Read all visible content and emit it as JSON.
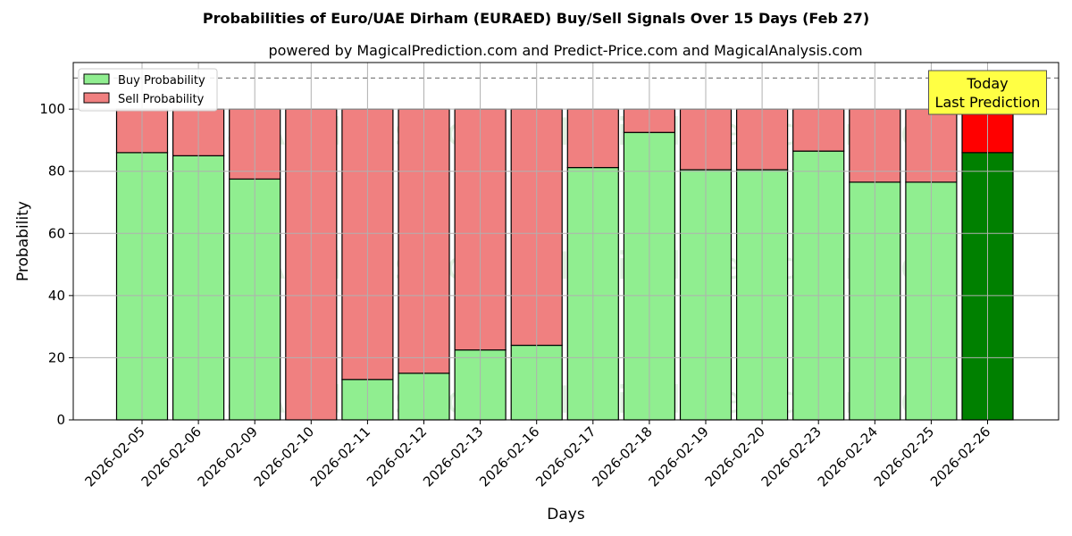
{
  "chart_data": {
    "type": "bar",
    "stacked": true,
    "title": "Probabilities of Euro/UAE Dirham (EURAED) Buy/Sell Signals Over 15 Days (Feb 27)",
    "subtitle": "powered by MagicalPrediction.com and Predict-Price.com and MagicalAnalysis.com",
    "xlabel": "Days",
    "ylabel": "Probability",
    "ylim": [
      0,
      115
    ],
    "yticks": [
      0,
      20,
      40,
      60,
      80,
      100
    ],
    "reference_line": 110,
    "grid": true,
    "legend_position": "top-left",
    "categories": [
      "2026-02-05",
      "2026-02-06",
      "2026-02-09",
      "2026-02-10",
      "2026-02-11",
      "2026-02-12",
      "2026-02-13",
      "2026-02-16",
      "2026-02-17",
      "2026-02-18",
      "2026-02-19",
      "2026-02-20",
      "2026-02-23",
      "2026-02-24",
      "2026-02-25",
      "2026-02-26"
    ],
    "series": [
      {
        "name": "Buy Probability",
        "color": "#90ee90",
        "highlight_color": "#008000",
        "values": [
          86,
          85,
          77.5,
          0,
          13,
          15,
          22.5,
          24,
          81.2,
          92.5,
          80.5,
          80.5,
          86.5,
          76.5,
          76.5,
          86
        ]
      },
      {
        "name": "Sell Probability",
        "color": "#f08080",
        "highlight_color": "#ff0000",
        "values": [
          14,
          15,
          22.5,
          100,
          87,
          85,
          77.5,
          76,
          18.8,
          7.5,
          19.5,
          19.5,
          13.5,
          23.5,
          23.5,
          14
        ]
      }
    ],
    "annotation": {
      "text_lines": [
        "Today",
        "Last Prediction"
      ],
      "category": "2026-02-26",
      "background": "#ffff44"
    },
    "watermarks": [
      "MagicalAnalysis.com",
      "MagicalPrediction.com"
    ]
  }
}
